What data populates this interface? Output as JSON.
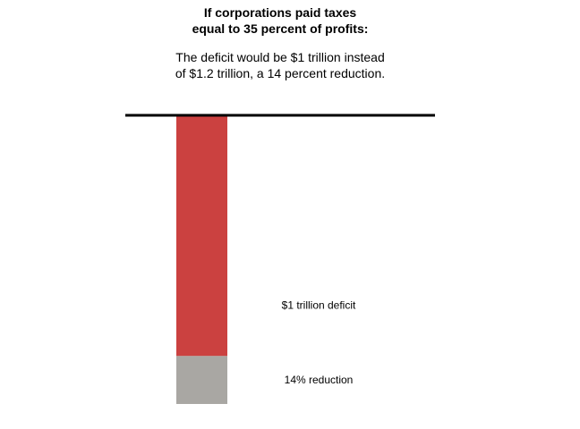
{
  "title_lines": [
    "If corporations paid taxes",
    "equal to 35 percent of profits:"
  ],
  "subtitle_lines": [
    "The deficit would be $1 trillion instead",
    "of $1.2 trillion, a 14 percent reduction."
  ],
  "colors": {
    "deficit": "#cb4140",
    "reduction": "#a9a7a3",
    "baseline": "#000000"
  },
  "chart_data": {
    "type": "bar",
    "orientation": "downward-stacked",
    "title": "If corporations paid taxes equal to 35 percent of profits:",
    "subtitle": "The deficit would be $1 trillion instead of $1.2 trillion, a 14 percent reduction.",
    "series": [
      {
        "name": "$1 trillion deficit",
        "value": 1.0,
        "color": "#cb4140"
      },
      {
        "name": "14% reduction",
        "value": 0.2,
        "color": "#a9a7a3"
      }
    ],
    "total": 1.2,
    "units": "trillion $",
    "grid": false,
    "legend": "none"
  }
}
